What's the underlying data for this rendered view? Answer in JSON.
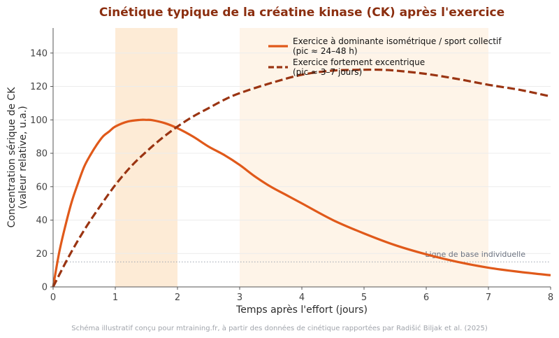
{
  "chart_data": {
    "type": "line",
    "title": "Cinétique typique de la créatine kinase (CK) après l'exercice",
    "xlabel": "Temps après l'effort (jours)",
    "ylabel_line1": "Concentration sérique de CK",
    "ylabel_line2": "(valeur relative, u.a.)",
    "xlim": [
      0,
      8
    ],
    "ylim": [
      0,
      155
    ],
    "xticks": [
      "0",
      "1",
      "2",
      "3",
      "4",
      "5",
      "6",
      "7",
      "8"
    ],
    "yticks": [
      "0",
      "20",
      "40",
      "60",
      "80",
      "100",
      "120",
      "140"
    ],
    "grid": "horizontal",
    "legend_position": "top-right",
    "shaded_regions": [
      {
        "x_start": 1,
        "x_end": 2,
        "color": "#fdebd6"
      },
      {
        "x_start": 3,
        "x_end": 7,
        "color": "#fef4e8"
      }
    ],
    "baseline": {
      "y": 15,
      "label": "Ligne de base individuelle",
      "color": "#9ca3af"
    },
    "series": [
      {
        "name_line1": "Exercice à dominante isométrique / sport collectif",
        "name_line2": "(pic ≈ 24–48 h)",
        "style": "solid",
        "color": "#e0591a",
        "x": [
          0,
          0.1,
          0.2,
          0.3,
          0.4,
          0.5,
          0.6,
          0.7,
          0.8,
          0.9,
          1.0,
          1.2,
          1.4,
          1.5,
          1.6,
          1.8,
          2.0,
          2.25,
          2.5,
          2.75,
          3.0,
          3.25,
          3.5,
          3.75,
          4.0,
          4.5,
          5.0,
          5.5,
          6.0,
          6.5,
          7.0,
          7.5,
          8.0
        ],
        "y": [
          0,
          21,
          37,
          51,
          62,
          72,
          79,
          85,
          90,
          93,
          96,
          99,
          100,
          100,
          99.8,
          98,
          95,
          90,
          84,
          79,
          73,
          66,
          60,
          55,
          50,
          40,
          32,
          25,
          19.5,
          15,
          11.5,
          9,
          7
        ]
      },
      {
        "name_line1": "Exercice fortement excentrique",
        "name_line2": "(pic ≈ 3–7 jours)",
        "style": "dashed",
        "color": "#9a3412",
        "x": [
          0,
          0.25,
          0.5,
          0.75,
          1.0,
          1.25,
          1.5,
          1.75,
          2.0,
          2.25,
          2.5,
          2.75,
          3.0,
          3.5,
          4.0,
          4.5,
          5.0,
          5.25,
          5.5,
          6.0,
          6.5,
          7.0,
          7.5,
          8.0
        ],
        "y": [
          0,
          18,
          34,
          48,
          61,
          72,
          81,
          89,
          96,
          102,
          107,
          112,
          116,
          122,
          127,
          129.5,
          130,
          130,
          129.5,
          127.5,
          124.5,
          121,
          118,
          114
        ]
      }
    ]
  },
  "footer": "Schéma illustratif conçu pour mtraining.fr, à partir des données de cinétique rapportées par Radišić Biljak et al. (2025)"
}
